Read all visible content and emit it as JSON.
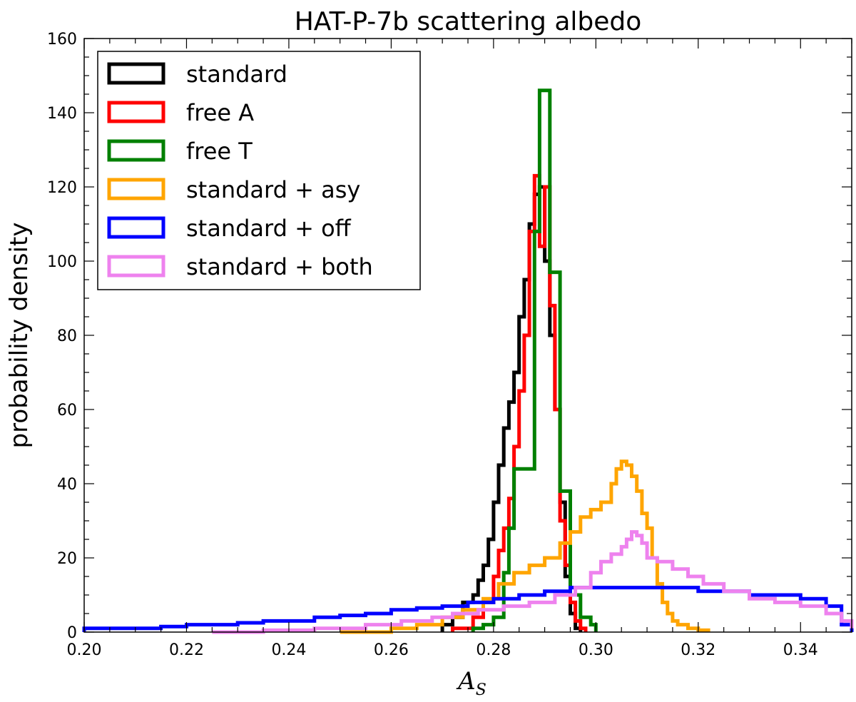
{
  "chart_data": {
    "type": "histogram-step",
    "title": "HAT-P-7b scattering albedo",
    "xlabel_main": "A",
    "xlabel_sub": "S",
    "ylabel": "probability density",
    "xlim": [
      0.2,
      0.35
    ],
    "ylim": [
      0,
      160
    ],
    "xticks": [
      "0.20",
      "0.22",
      "0.24",
      "0.26",
      "0.28",
      "0.30",
      "0.32",
      "0.34"
    ],
    "xtick_values": [
      0.2,
      0.22,
      0.24,
      0.26,
      0.28,
      0.3,
      0.32,
      0.34
    ],
    "yticks": [
      "0",
      "20",
      "40",
      "60",
      "80",
      "100",
      "120",
      "140",
      "160"
    ],
    "ytick_values": [
      0,
      20,
      40,
      60,
      80,
      100,
      120,
      140,
      160
    ],
    "grid": false,
    "legend_position": "top-left",
    "series": [
      {
        "name": "standard",
        "color": "#000000",
        "x": [
          0.27,
          0.272,
          0.274,
          0.276,
          0.277,
          0.278,
          0.279,
          0.28,
          0.281,
          0.282,
          0.283,
          0.284,
          0.285,
          0.286,
          0.287,
          0.288,
          0.289,
          0.29,
          0.291,
          0.292,
          0.293,
          0.294,
          0.295,
          0.296,
          0.297
        ],
        "y": [
          2,
          4,
          8,
          10,
          14,
          18,
          25,
          35,
          45,
          55,
          62,
          70,
          85,
          95,
          110,
          118,
          120,
          100,
          80,
          60,
          35,
          15,
          5,
          1,
          0
        ]
      },
      {
        "name": "free A",
        "color": "#ff0000",
        "x": [
          0.272,
          0.276,
          0.278,
          0.28,
          0.281,
          0.282,
          0.283,
          0.284,
          0.285,
          0.286,
          0.287,
          0.288,
          0.289,
          0.29,
          0.291,
          0.292,
          0.293,
          0.294,
          0.295,
          0.296,
          0.297,
          0.298
        ],
        "y": [
          1,
          4,
          8,
          15,
          22,
          28,
          36,
          50,
          65,
          80,
          108,
          123,
          104,
          120,
          88,
          60,
          30,
          18,
          8,
          3,
          1,
          0
        ]
      },
      {
        "name": "free T",
        "color": "#008000",
        "x": [
          0.276,
          0.278,
          0.28,
          0.282,
          0.283,
          0.284,
          0.286,
          0.288,
          0.289,
          0.29,
          0.291,
          0.292,
          0.293,
          0.294,
          0.295,
          0.296,
          0.297,
          0.298,
          0.299,
          0.3
        ],
        "y": [
          1,
          2,
          4,
          16,
          28,
          44,
          44,
          108,
          146,
          146,
          97,
          97,
          38,
          38,
          10,
          10,
          4,
          4,
          2,
          0
        ]
      },
      {
        "name": "standard + asy",
        "color": "#ffa500",
        "x": [
          0.25,
          0.26,
          0.265,
          0.27,
          0.274,
          0.278,
          0.281,
          0.284,
          0.287,
          0.29,
          0.293,
          0.295,
          0.297,
          0.299,
          0.301,
          0.303,
          0.304,
          0.305,
          0.306,
          0.307,
          0.308,
          0.309,
          0.31,
          0.311,
          0.312,
          0.313,
          0.314,
          0.315,
          0.316,
          0.318,
          0.32,
          0.322
        ],
        "y": [
          0,
          1,
          2,
          4,
          6,
          9,
          13,
          16,
          18,
          20,
          24,
          27,
          31,
          33,
          35,
          40,
          44,
          46,
          45,
          42,
          38,
          32,
          28,
          20,
          13,
          8,
          5,
          3,
          2,
          1,
          0.5,
          0
        ]
      },
      {
        "name": "standard + off",
        "color": "#0000ff",
        "x": [
          0.2,
          0.205,
          0.21,
          0.215,
          0.22,
          0.225,
          0.23,
          0.235,
          0.24,
          0.245,
          0.25,
          0.255,
          0.26,
          0.265,
          0.27,
          0.275,
          0.28,
          0.285,
          0.29,
          0.295,
          0.3,
          0.305,
          0.31,
          0.315,
          0.32,
          0.325,
          0.33,
          0.335,
          0.34,
          0.345,
          0.348,
          0.35
        ],
        "y": [
          1,
          1,
          1,
          1.5,
          2,
          2,
          2.5,
          3,
          3,
          4,
          4.5,
          5,
          6,
          6.5,
          7,
          8,
          9,
          10,
          11,
          12,
          12,
          12,
          12,
          12,
          11,
          11,
          10,
          10,
          9,
          7,
          2,
          0
        ]
      },
      {
        "name": "standard + both",
        "color": "#ee82ee",
        "x": [
          0.225,
          0.235,
          0.245,
          0.255,
          0.262,
          0.268,
          0.272,
          0.277,
          0.282,
          0.287,
          0.292,
          0.296,
          0.299,
          0.301,
          0.303,
          0.305,
          0.306,
          0.307,
          0.308,
          0.309,
          0.31,
          0.312,
          0.315,
          0.318,
          0.321,
          0.325,
          0.33,
          0.335,
          0.34,
          0.345,
          0.348,
          0.35
        ],
        "y": [
          0,
          0.5,
          1,
          2,
          3,
          4,
          5,
          6,
          7,
          8,
          10,
          12,
          16,
          19,
          21,
          23,
          25,
          27,
          26,
          24,
          20,
          19,
          17,
          15,
          13,
          11,
          9,
          8,
          7,
          5,
          3,
          1
        ]
      }
    ]
  }
}
